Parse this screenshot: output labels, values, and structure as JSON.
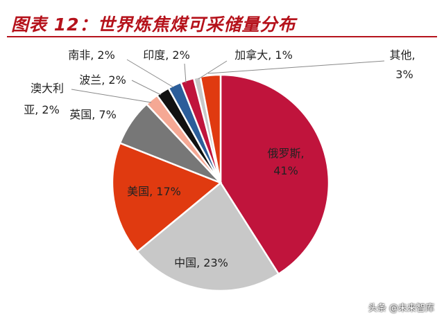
{
  "title": "图表 12：世界炼焦煤可采储量分布",
  "watermark": "头条 @未来智库",
  "chart_data": {
    "type": "pie",
    "start_angle_deg": 0,
    "direction": "clockwise",
    "slices": [
      {
        "name": "俄罗斯",
        "value": 41,
        "label": "俄罗斯,",
        "pct_label": "41%",
        "color": "#c0143c"
      },
      {
        "name": "中国",
        "value": 23,
        "label": "中国, 23%",
        "color": "#c8c8c8"
      },
      {
        "name": "美国",
        "value": 17,
        "label": "美国, 17%",
        "color": "#e03a10"
      },
      {
        "name": "英国",
        "value": 7,
        "label": "英国, 7%",
        "color": "#777777"
      },
      {
        "name": "澳大利亚",
        "value": 2,
        "label": "澳大利",
        "label2": "亚, 2%",
        "color": "#f5a894"
      },
      {
        "name": "波兰",
        "value": 2,
        "label": "波兰, 2%",
        "color": "#111111"
      },
      {
        "name": "南非",
        "value": 2,
        "label": "南非, 2%",
        "color": "#2c5e9a"
      },
      {
        "name": "印度",
        "value": 2,
        "label": "印度, 2%",
        "color": "#c0143c"
      },
      {
        "name": "加拿大",
        "value": 1,
        "label": "加拿大, 1%",
        "color": "#c8c8c8"
      },
      {
        "name": "其他",
        "value": 3,
        "label": "其他,",
        "label2": "3%",
        "color": "#e03a10"
      }
    ]
  }
}
